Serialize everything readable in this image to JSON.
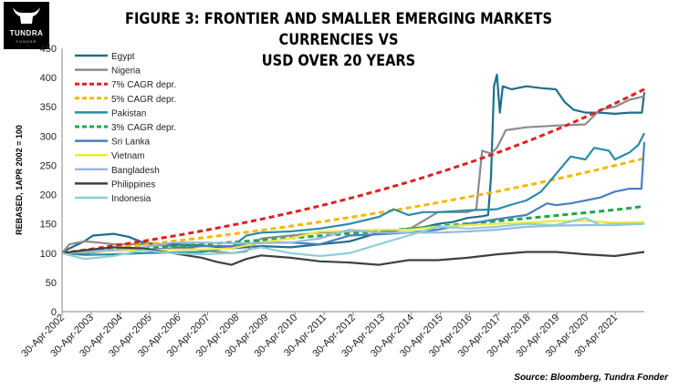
{
  "logo": {
    "text": "TUNDRA",
    "sub": "FONDER"
  },
  "title_line1": "FIGURE 3: FRONTIER AND SMALLER EMERGING MARKETS CURRENCIES VS",
  "title_line2": "USD OVER 20 YEARS",
  "source": "Source: Bloomberg, Tundra Fonder",
  "chart_data": {
    "type": "line",
    "title": "FIGURE 3: FRONTIER AND SMALLER EMERGING MARKETS CURRENCIES VS USD OVER 20 YEARS",
    "ylabel": "REBASED, 1APR 2002 = 100",
    "xlabel": "",
    "ylim": [
      0,
      450
    ],
    "yticks": [
      0,
      50,
      100,
      150,
      200,
      250,
      300,
      350,
      400,
      450
    ],
    "xlim": [
      2002.25,
      2022.0
    ],
    "xtick_labels": [
      "30-Apr-2002",
      "30-Apr-2003",
      "30-Apr-2004",
      "30-Apr-2005",
      "30-Apr-2006",
      "30-Apr-2007",
      "30-Apr-2008",
      "30-Apr-2009",
      "30-Apr-2010",
      "30-Apr-2011",
      "30-Apr-2012",
      "30-Apr-2013",
      "30-Apr-2014",
      "30-Apr-2015",
      "30-Apr-2016",
      "30-Apr-2017",
      "30-Apr-2018",
      "30-Apr-2019",
      "30-Apr-2020",
      "30-Apr-2021"
    ],
    "grid": false,
    "legend_position": "top-left",
    "series": [
      {
        "name": "Egypt",
        "color": "#1f6e8c",
        "dash": "solid",
        "points": [
          [
            2002.25,
            100
          ],
          [
            2002.5,
            108
          ],
          [
            2003.0,
            120
          ],
          [
            2003.3,
            130
          ],
          [
            2004.0,
            133
          ],
          [
            2004.5,
            128
          ],
          [
            2005.0,
            118
          ],
          [
            2005.5,
            115
          ],
          [
            2006.0,
            115
          ],
          [
            2007.0,
            113
          ],
          [
            2008.0,
            108
          ],
          [
            2009.0,
            112
          ],
          [
            2009.5,
            111
          ],
          [
            2010.0,
            110
          ],
          [
            2011.0,
            115
          ],
          [
            2012.0,
            120
          ],
          [
            2013.0,
            135
          ],
          [
            2013.5,
            138
          ],
          [
            2014.0,
            142
          ],
          [
            2014.5,
            144
          ],
          [
            2015.0,
            150
          ],
          [
            2015.5,
            153
          ],
          [
            2016.0,
            160
          ],
          [
            2016.5,
            163
          ],
          [
            2016.7,
            165
          ],
          [
            2016.8,
            230
          ],
          [
            2016.9,
            385
          ],
          [
            2017.0,
            405
          ],
          [
            2017.1,
            340
          ],
          [
            2017.2,
            385
          ],
          [
            2017.5,
            380
          ],
          [
            2018.0,
            385
          ],
          [
            2018.5,
            382
          ],
          [
            2019.0,
            380
          ],
          [
            2019.3,
            358
          ],
          [
            2019.6,
            345
          ],
          [
            2020.0,
            340
          ],
          [
            2020.5,
            340
          ],
          [
            2021.0,
            338
          ],
          [
            2021.5,
            340
          ],
          [
            2021.92,
            340
          ],
          [
            2022.0,
            375
          ]
        ]
      },
      {
        "name": "Nigeria",
        "color": "#8c8c8c",
        "dash": "solid",
        "points": [
          [
            2002.25,
            100
          ],
          [
            2002.5,
            115
          ],
          [
            2003.0,
            120
          ],
          [
            2003.5,
            118
          ],
          [
            2004.0,
            115
          ],
          [
            2005.0,
            115
          ],
          [
            2006.0,
            112
          ],
          [
            2007.0,
            105
          ],
          [
            2008.0,
            100
          ],
          [
            2008.5,
            103
          ],
          [
            2009.0,
            125
          ],
          [
            2010.0,
            130
          ],
          [
            2011.0,
            135
          ],
          [
            2012.0,
            137
          ],
          [
            2013.0,
            140
          ],
          [
            2014.0,
            140
          ],
          [
            2015.0,
            170
          ],
          [
            2016.0,
            170
          ],
          [
            2016.3,
            175
          ],
          [
            2016.5,
            275
          ],
          [
            2016.8,
            270
          ],
          [
            2017.0,
            280
          ],
          [
            2017.3,
            310
          ],
          [
            2018.0,
            315
          ],
          [
            2019.0,
            318
          ],
          [
            2020.0,
            320
          ],
          [
            2020.5,
            345
          ],
          [
            2021.0,
            350
          ],
          [
            2021.5,
            362
          ],
          [
            2022.0,
            368
          ]
        ]
      },
      {
        "name": "7% CAGR depr.",
        "color": "#e02020",
        "dash": "6,4",
        "width": 3,
        "points": [
          [
            2002.25,
            100
          ],
          [
            2003.25,
            107
          ],
          [
            2004.25,
            114.5
          ],
          [
            2005.25,
            122.5
          ],
          [
            2006.25,
            131.1
          ],
          [
            2007.25,
            140.3
          ],
          [
            2008.25,
            150.1
          ],
          [
            2009.25,
            160.6
          ],
          [
            2010.25,
            171.8
          ],
          [
            2011.25,
            183.8
          ],
          [
            2012.25,
            196.7
          ],
          [
            2013.25,
            210.5
          ],
          [
            2014.25,
            225.2
          ],
          [
            2015.25,
            241
          ],
          [
            2016.25,
            257.9
          ],
          [
            2017.25,
            275.9
          ],
          [
            2018.25,
            295.2
          ],
          [
            2019.25,
            315.9
          ],
          [
            2020.25,
            338
          ],
          [
            2021.25,
            361.7
          ],
          [
            2022.0,
            380
          ]
        ]
      },
      {
        "name": "5% CAGR depr.",
        "color": "#f5b800",
        "dash": "6,4",
        "width": 3,
        "points": [
          [
            2002.25,
            100
          ],
          [
            2003.25,
            105
          ],
          [
            2004.25,
            110.3
          ],
          [
            2005.25,
            115.8
          ],
          [
            2006.25,
            121.6
          ],
          [
            2007.25,
            127.6
          ],
          [
            2008.25,
            134
          ],
          [
            2009.25,
            140.7
          ],
          [
            2010.25,
            147.7
          ],
          [
            2011.25,
            155.1
          ],
          [
            2012.25,
            162.9
          ],
          [
            2013.25,
            171
          ],
          [
            2014.25,
            179.6
          ],
          [
            2015.25,
            188.6
          ],
          [
            2016.25,
            198
          ],
          [
            2017.25,
            207.9
          ],
          [
            2018.25,
            218.3
          ],
          [
            2019.25,
            229.2
          ],
          [
            2020.25,
            240.7
          ],
          [
            2021.25,
            252.7
          ],
          [
            2022.0,
            262
          ]
        ]
      },
      {
        "name": "Pakistan",
        "color": "#2a8ca8",
        "dash": "solid",
        "points": [
          [
            2002.25,
            100
          ],
          [
            2003.0,
            97
          ],
          [
            2004.0,
            98
          ],
          [
            2005.0,
            100
          ],
          [
            2006.0,
            101
          ],
          [
            2007.0,
            102
          ],
          [
            2008.0,
            110
          ],
          [
            2008.5,
            130
          ],
          [
            2009.0,
            135
          ],
          [
            2010.0,
            137
          ],
          [
            2011.0,
            142
          ],
          [
            2012.0,
            150
          ],
          [
            2013.0,
            162
          ],
          [
            2013.5,
            175
          ],
          [
            2014.0,
            165
          ],
          [
            2014.5,
            170
          ],
          [
            2015.0,
            170
          ],
          [
            2016.0,
            173
          ],
          [
            2017.0,
            175
          ],
          [
            2017.5,
            183
          ],
          [
            2018.0,
            190
          ],
          [
            2018.5,
            205
          ],
          [
            2019.0,
            235
          ],
          [
            2019.5,
            265
          ],
          [
            2020.0,
            260
          ],
          [
            2020.3,
            280
          ],
          [
            2020.8,
            275
          ],
          [
            2021.0,
            260
          ],
          [
            2021.5,
            272
          ],
          [
            2021.8,
            285
          ],
          [
            2022.0,
            305
          ]
        ]
      },
      {
        "name": "3% CAGR depr.",
        "color": "#1ea84a",
        "dash": "6,4",
        "width": 3,
        "points": [
          [
            2002.25,
            100
          ],
          [
            2003.25,
            103
          ],
          [
            2004.25,
            106.1
          ],
          [
            2005.25,
            109.3
          ],
          [
            2006.25,
            112.6
          ],
          [
            2007.25,
            115.9
          ],
          [
            2008.25,
            119.4
          ],
          [
            2009.25,
            123
          ],
          [
            2010.25,
            126.7
          ],
          [
            2011.25,
            130.5
          ],
          [
            2012.25,
            134.4
          ],
          [
            2013.25,
            138.4
          ],
          [
            2014.25,
            142.6
          ],
          [
            2015.25,
            146.9
          ],
          [
            2016.25,
            151.3
          ],
          [
            2017.25,
            155.8
          ],
          [
            2018.25,
            160.5
          ],
          [
            2019.25,
            165.3
          ],
          [
            2020.25,
            170.2
          ],
          [
            2021.25,
            175.4
          ],
          [
            2022.0,
            180
          ]
        ]
      },
      {
        "name": "Sri Lanka",
        "color": "#4a7fc1",
        "dash": "solid",
        "points": [
          [
            2002.25,
            100
          ],
          [
            2003.0,
            100
          ],
          [
            2004.0,
            105
          ],
          [
            2005.0,
            106
          ],
          [
            2006.0,
            108
          ],
          [
            2007.0,
            112
          ],
          [
            2008.0,
            112
          ],
          [
            2009.0,
            118
          ],
          [
            2010.0,
            118
          ],
          [
            2011.0,
            115
          ],
          [
            2012.0,
            130
          ],
          [
            2013.0,
            132
          ],
          [
            2014.0,
            135
          ],
          [
            2015.0,
            140
          ],
          [
            2016.0,
            150
          ],
          [
            2017.0,
            158
          ],
          [
            2018.0,
            165
          ],
          [
            2018.7,
            185
          ],
          [
            2019.0,
            182
          ],
          [
            2019.5,
            185
          ],
          [
            2020.0,
            190
          ],
          [
            2020.5,
            195
          ],
          [
            2021.0,
            205
          ],
          [
            2021.5,
            210
          ],
          [
            2021.9,
            210
          ],
          [
            2022.0,
            290
          ]
        ]
      },
      {
        "name": "Vietnam",
        "color": "#f0e840",
        "dash": "solid",
        "points": [
          [
            2002.25,
            100
          ],
          [
            2003.0,
            102
          ],
          [
            2004.0,
            104
          ],
          [
            2005.0,
            105
          ],
          [
            2006.0,
            106
          ],
          [
            2007.0,
            106
          ],
          [
            2008.0,
            108
          ],
          [
            2009.0,
            118
          ],
          [
            2010.0,
            125
          ],
          [
            2011.0,
            137
          ],
          [
            2012.0,
            138
          ],
          [
            2013.0,
            140
          ],
          [
            2014.0,
            140
          ],
          [
            2015.0,
            145
          ],
          [
            2016.0,
            148
          ],
          [
            2017.0,
            150
          ],
          [
            2018.0,
            152
          ],
          [
            2019.0,
            155
          ],
          [
            2020.0,
            155
          ],
          [
            2021.0,
            152
          ],
          [
            2022.0,
            153
          ]
        ]
      },
      {
        "name": "Bangladesh",
        "color": "#9ab8e0",
        "dash": "solid",
        "points": [
          [
            2002.25,
            100
          ],
          [
            2003.0,
            103
          ],
          [
            2004.0,
            105
          ],
          [
            2005.0,
            110
          ],
          [
            2006.0,
            118
          ],
          [
            2007.0,
            118
          ],
          [
            2008.0,
            117
          ],
          [
            2009.0,
            117
          ],
          [
            2010.0,
            118
          ],
          [
            2011.0,
            125
          ],
          [
            2012.0,
            140
          ],
          [
            2013.0,
            135
          ],
          [
            2014.0,
            135
          ],
          [
            2015.0,
            135
          ],
          [
            2016.0,
            137
          ],
          [
            2017.0,
            140
          ],
          [
            2018.0,
            145
          ],
          [
            2019.0,
            147
          ],
          [
            2020.0,
            148
          ],
          [
            2021.0,
            148
          ],
          [
            2022.0,
            150
          ]
        ]
      },
      {
        "name": "Philippines",
        "color": "#404040",
        "dash": "solid",
        "points": [
          [
            2002.25,
            100
          ],
          [
            2003.0,
            105
          ],
          [
            2004.0,
            110
          ],
          [
            2005.0,
            108
          ],
          [
            2006.0,
            100
          ],
          [
            2007.0,
            92
          ],
          [
            2007.5,
            85
          ],
          [
            2008.0,
            80
          ],
          [
            2008.5,
            90
          ],
          [
            2009.0,
            96
          ],
          [
            2010.0,
            92
          ],
          [
            2011.0,
            86
          ],
          [
            2012.0,
            84
          ],
          [
            2013.0,
            80
          ],
          [
            2014.0,
            88
          ],
          [
            2015.0,
            88
          ],
          [
            2016.0,
            92
          ],
          [
            2017.0,
            98
          ],
          [
            2018.0,
            102
          ],
          [
            2019.0,
            102
          ],
          [
            2020.0,
            98
          ],
          [
            2021.0,
            95
          ],
          [
            2022.0,
            102
          ]
        ]
      },
      {
        "name": "Indonesia",
        "color": "#8ecfd6",
        "dash": "solid",
        "points": [
          [
            2002.25,
            100
          ],
          [
            2003.0,
            90
          ],
          [
            2004.0,
            95
          ],
          [
            2005.0,
            105
          ],
          [
            2006.0,
            100
          ],
          [
            2007.0,
            98
          ],
          [
            2008.0,
            100
          ],
          [
            2009.0,
            110
          ],
          [
            2010.0,
            100
          ],
          [
            2011.0,
            95
          ],
          [
            2012.0,
            100
          ],
          [
            2013.0,
            115
          ],
          [
            2014.0,
            130
          ],
          [
            2015.0,
            145
          ],
          [
            2016.0,
            142
          ],
          [
            2017.0,
            145
          ],
          [
            2018.0,
            150
          ],
          [
            2019.0,
            148
          ],
          [
            2020.0,
            160
          ],
          [
            2020.5,
            148
          ],
          [
            2021.0,
            150
          ],
          [
            2022.0,
            150
          ]
        ]
      }
    ]
  }
}
